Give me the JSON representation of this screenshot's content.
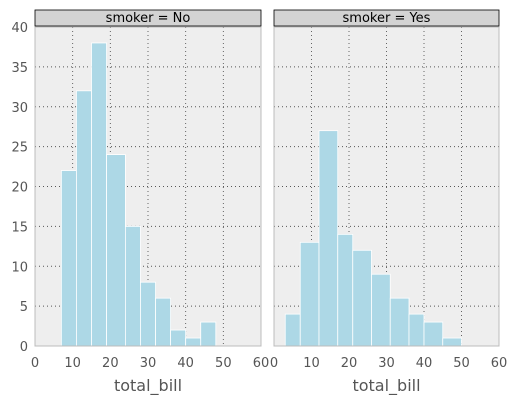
{
  "chart_data": {
    "type": "bar",
    "bar_color": "#add8e6",
    "background": "#eeeeee",
    "strip_color": "#d3d3d3",
    "grid": true,
    "xlim": [
      0,
      60
    ],
    "ylim": [
      0,
      40
    ],
    "xticks": [
      "0",
      "10",
      "20",
      "30",
      "40",
      "50",
      "60"
    ],
    "yticks": [
      "0",
      "5",
      "10",
      "15",
      "20",
      "25",
      "30",
      "35",
      "40"
    ],
    "panels": [
      {
        "title": "smoker = No",
        "xlabel": "total_bill",
        "bins": [
          {
            "x0": 7,
            "x1": 11,
            "count": 22
          },
          {
            "x0": 11,
            "x1": 15,
            "count": 32
          },
          {
            "x0": 15,
            "x1": 19,
            "count": 38
          },
          {
            "x0": 19,
            "x1": 24,
            "count": 24
          },
          {
            "x0": 24,
            "x1": 28,
            "count": 15
          },
          {
            "x0": 28,
            "x1": 32,
            "count": 8
          },
          {
            "x0": 32,
            "x1": 36,
            "count": 6
          },
          {
            "x0": 36,
            "x1": 40,
            "count": 2
          },
          {
            "x0": 40,
            "x1": 44,
            "count": 1
          },
          {
            "x0": 44,
            "x1": 48,
            "count": 3
          }
        ]
      },
      {
        "title": "smoker = Yes",
        "xlabel": "total_bill",
        "bins": [
          {
            "x0": 3,
            "x1": 7,
            "count": 4
          },
          {
            "x0": 7,
            "x1": 12,
            "count": 13
          },
          {
            "x0": 12,
            "x1": 17,
            "count": 27
          },
          {
            "x0": 17,
            "x1": 21,
            "count": 14
          },
          {
            "x0": 21,
            "x1": 26,
            "count": 12
          },
          {
            "x0": 26,
            "x1": 31,
            "count": 9
          },
          {
            "x0": 31,
            "x1": 36,
            "count": 6
          },
          {
            "x0": 36,
            "x1": 40,
            "count": 4
          },
          {
            "x0": 40,
            "x1": 45,
            "count": 3
          },
          {
            "x0": 45,
            "x1": 50,
            "count": 1
          }
        ]
      }
    ]
  }
}
